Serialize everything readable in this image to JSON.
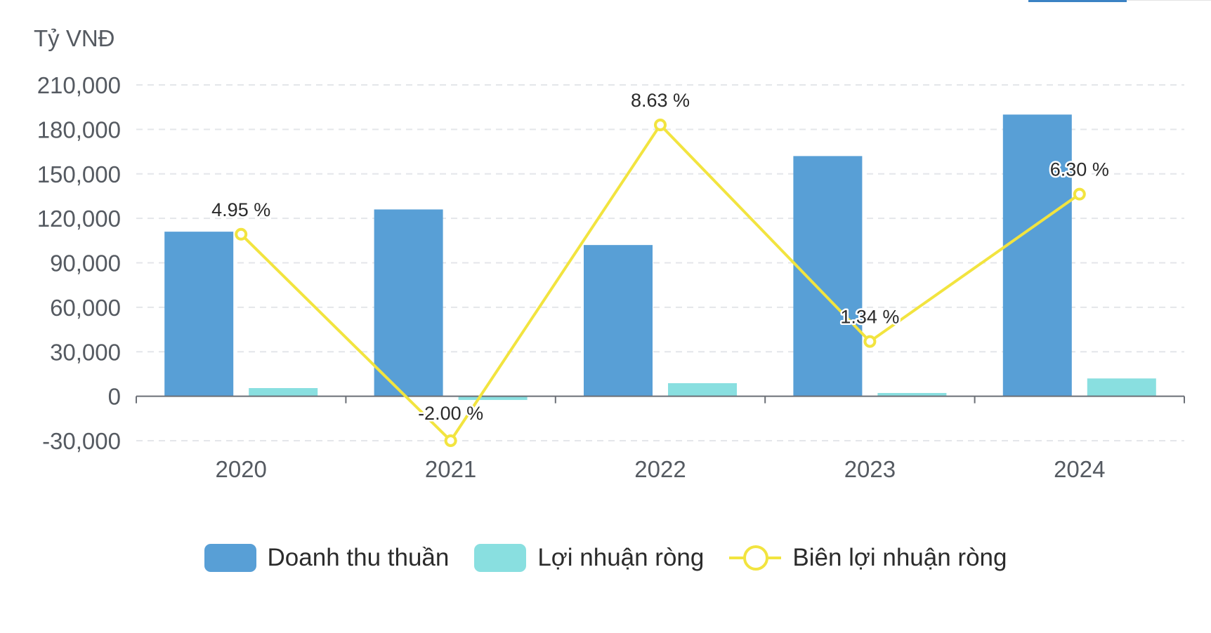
{
  "chart_data": {
    "type": "bar",
    "unit_label": "Tỷ VNĐ",
    "categories": [
      "2020",
      "2021",
      "2022",
      "2023",
      "2024"
    ],
    "y_ticks": [
      "210,000",
      "180,000",
      "150,000",
      "120,000",
      "90,000",
      "60,000",
      "30,000",
      "0",
      "-30,000"
    ],
    "y_tick_values": [
      210000,
      180000,
      150000,
      120000,
      90000,
      60000,
      30000,
      0,
      -30000
    ],
    "ylim": [
      -30000,
      210000
    ],
    "grid": true,
    "legend_position": "bottom",
    "series": [
      {
        "name": "Doanh thu thuần",
        "type": "bar",
        "color": "#589fd6",
        "values": [
          111000,
          126000,
          102000,
          162000,
          190000
        ]
      },
      {
        "name": "Lợi nhuận ròng",
        "type": "bar",
        "color": "#89dfe0",
        "values": [
          5500,
          -2500,
          8800,
          2200,
          12000
        ]
      },
      {
        "name": "Biên lợi nhuận ròng",
        "type": "line",
        "color": "#f2e43f",
        "values": [
          4.95,
          -2.0,
          8.63,
          1.34,
          6.3
        ],
        "labels": [
          "4.95 %",
          "-2.00 %",
          "8.63 %",
          "1.34 %",
          "6.30 %"
        ]
      }
    ]
  }
}
